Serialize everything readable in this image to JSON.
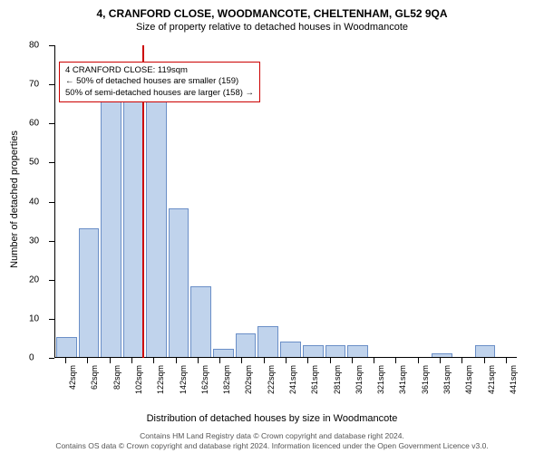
{
  "title": "4, CRANFORD CLOSE, WOODMANCOTE, CHELTENHAM, GL52 9QA",
  "subtitle": "Size of property relative to detached houses in Woodmancote",
  "y_axis_label": "Number of detached properties",
  "x_axis_label": "Distribution of detached houses by size in Woodmancote",
  "chart": {
    "type": "bar",
    "ylim": [
      0,
      80
    ],
    "ytick_step": 10,
    "bar_color": "#c0d3ec",
    "bar_border": "#6b8fc7",
    "marker_color": "#cc0000",
    "background": "#ffffff",
    "axis_color": "#000000",
    "x_categories": [
      "42sqm",
      "62sqm",
      "82sqm",
      "102sqm",
      "122sqm",
      "142sqm",
      "162sqm",
      "182sqm",
      "202sqm",
      "222sqm",
      "241sqm",
      "261sqm",
      "281sqm",
      "301sqm",
      "321sqm",
      "341sqm",
      "361sqm",
      "381sqm",
      "401sqm",
      "421sqm",
      "441sqm"
    ],
    "values": [
      5,
      33,
      67,
      67,
      67,
      38,
      18,
      2,
      6,
      8,
      4,
      3,
      3,
      3,
      0,
      0,
      0,
      1,
      0,
      3,
      0
    ],
    "marker_x_index": 4,
    "marker_offset_within_bar": 0.0
  },
  "annotation": {
    "line1": "4 CRANFORD CLOSE: 119sqm",
    "line2": "← 50% of detached houses are smaller (159)",
    "line3": "50% of semi-detached houses are larger (158) →"
  },
  "footer": {
    "line1": "Contains HM Land Registry data © Crown copyright and database right 2024.",
    "line2": "Contains OS data © Crown copyright and database right 2024. Information licenced under the Open Government Licence v3.0."
  }
}
